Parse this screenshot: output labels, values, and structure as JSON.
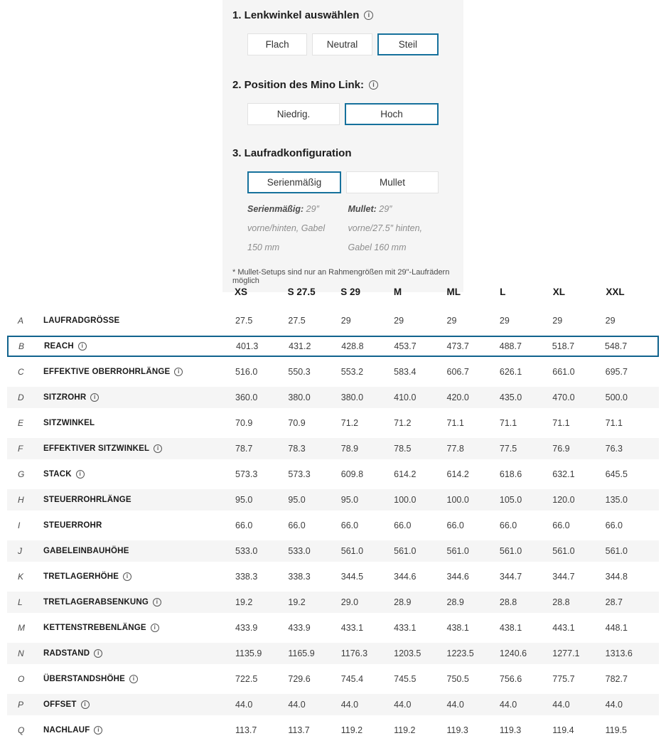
{
  "accent_color": "#16719c",
  "config": {
    "steps": [
      {
        "title": "1. Lenkwinkel auswählen",
        "has_info": true,
        "options": [
          {
            "label": "Flach",
            "selected": false
          },
          {
            "label": "Neutral",
            "selected": false
          },
          {
            "label": "Steil",
            "selected": true
          }
        ]
      },
      {
        "title": "2. Position des Mino Link:",
        "has_info": true,
        "options": [
          {
            "label": "Niedrig.",
            "selected": false
          },
          {
            "label": "Hoch",
            "selected": true
          }
        ]
      },
      {
        "title": "3. Laufradkonfiguration",
        "has_info": false,
        "options": [
          {
            "label": "Serienmäßig",
            "selected": true
          },
          {
            "label": "Mullet",
            "selected": false
          }
        ],
        "descriptions": [
          {
            "lead": "Serienmäßig:",
            "text": " 29″ vorne/hinten, Gabel 150 mm"
          },
          {
            "lead": "Mullet:",
            "text": " 29″ vorne/27.5″ hinten, Gabel 160 mm"
          }
        ]
      }
    ],
    "footnote": "* Mullet-Setups sind nur an Rahmengrößen mit 29\"-Laufrädern möglich"
  },
  "table": {
    "columns": [
      "XS",
      "S 27.5",
      "S 29",
      "M",
      "ML",
      "L",
      "XL",
      "XXL"
    ],
    "rows": [
      {
        "letter": "A",
        "label": "LAUFRADGRÖSSE",
        "info": false,
        "highlight": false,
        "values": [
          "27.5",
          "27.5",
          "29",
          "29",
          "29",
          "29",
          "29",
          "29"
        ]
      },
      {
        "letter": "B",
        "label": "REACH",
        "info": true,
        "highlight": true,
        "values": [
          "401.3",
          "431.2",
          "428.8",
          "453.7",
          "473.7",
          "488.7",
          "518.7",
          "548.7"
        ]
      },
      {
        "letter": "C",
        "label": "EFFEKTIVE OBERROHRLÄNGE",
        "info": true,
        "highlight": false,
        "values": [
          "516.0",
          "550.3",
          "553.2",
          "583.4",
          "606.7",
          "626.1",
          "661.0",
          "695.7"
        ]
      },
      {
        "letter": "D",
        "label": "SITZROHR",
        "info": true,
        "highlight": false,
        "values": [
          "360.0",
          "380.0",
          "380.0",
          "410.0",
          "420.0",
          "435.0",
          "470.0",
          "500.0"
        ]
      },
      {
        "letter": "E",
        "label": "SITZWINKEL",
        "info": false,
        "highlight": false,
        "values": [
          "70.9",
          "70.9",
          "71.2",
          "71.2",
          "71.1",
          "71.1",
          "71.1",
          "71.1"
        ]
      },
      {
        "letter": "F",
        "label": "EFFEKTIVER SITZWINKEL",
        "info": true,
        "highlight": false,
        "values": [
          "78.7",
          "78.3",
          "78.9",
          "78.5",
          "77.8",
          "77.5",
          "76.9",
          "76.3"
        ]
      },
      {
        "letter": "G",
        "label": "STACK",
        "info": true,
        "highlight": false,
        "values": [
          "573.3",
          "573.3",
          "609.8",
          "614.2",
          "614.2",
          "618.6",
          "632.1",
          "645.5"
        ]
      },
      {
        "letter": "H",
        "label": "STEUERROHRLÄNGE",
        "info": false,
        "highlight": false,
        "values": [
          "95.0",
          "95.0",
          "95.0",
          "100.0",
          "100.0",
          "105.0",
          "120.0",
          "135.0"
        ]
      },
      {
        "letter": "I",
        "label": "STEUERROHR",
        "info": false,
        "highlight": false,
        "values": [
          "66.0",
          "66.0",
          "66.0",
          "66.0",
          "66.0",
          "66.0",
          "66.0",
          "66.0"
        ]
      },
      {
        "letter": "J",
        "label": "GABELEINBAUHÖHE",
        "info": false,
        "highlight": false,
        "values": [
          "533.0",
          "533.0",
          "561.0",
          "561.0",
          "561.0",
          "561.0",
          "561.0",
          "561.0"
        ]
      },
      {
        "letter": "K",
        "label": "TRETLAGERHÖHE",
        "info": true,
        "highlight": false,
        "values": [
          "338.3",
          "338.3",
          "344.5",
          "344.6",
          "344.6",
          "344.7",
          "344.7",
          "344.8"
        ]
      },
      {
        "letter": "L",
        "label": "TRETLAGERABSENKUNG",
        "info": true,
        "highlight": false,
        "values": [
          "19.2",
          "19.2",
          "29.0",
          "28.9",
          "28.9",
          "28.8",
          "28.8",
          "28.7"
        ]
      },
      {
        "letter": "M",
        "label": "KETTENSTREBENLÄNGE",
        "info": true,
        "highlight": false,
        "values": [
          "433.9",
          "433.9",
          "433.1",
          "433.1",
          "438.1",
          "438.1",
          "443.1",
          "448.1"
        ]
      },
      {
        "letter": "N",
        "label": "RADSTAND",
        "info": true,
        "highlight": false,
        "values": [
          "1135.9",
          "1165.9",
          "1176.3",
          "1203.5",
          "1223.5",
          "1240.6",
          "1277.1",
          "1313.6"
        ]
      },
      {
        "letter": "O",
        "label": "ÜBERSTANDSHÖHE",
        "info": true,
        "highlight": false,
        "values": [
          "722.5",
          "729.6",
          "745.4",
          "745.5",
          "750.5",
          "756.6",
          "775.7",
          "782.7"
        ]
      },
      {
        "letter": "P",
        "label": "OFFSET",
        "info": true,
        "highlight": false,
        "values": [
          "44.0",
          "44.0",
          "44.0",
          "44.0",
          "44.0",
          "44.0",
          "44.0",
          "44.0"
        ]
      },
      {
        "letter": "Q",
        "label": "NACHLAUF",
        "info": true,
        "highlight": false,
        "values": [
          "113.7",
          "113.7",
          "119.2",
          "119.2",
          "119.3",
          "119.3",
          "119.4",
          "119.5"
        ]
      }
    ]
  }
}
